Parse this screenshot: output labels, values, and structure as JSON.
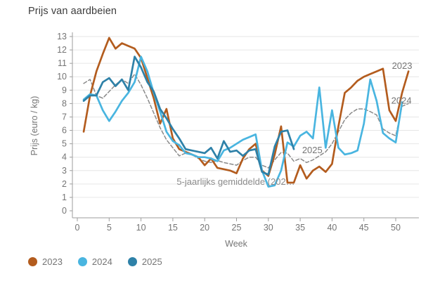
{
  "page": {
    "title": "Prijs van aardbeien"
  },
  "chart_data": {
    "type": "line",
    "title": "Prijs van aardbeien",
    "xlabel": "Week",
    "ylabel": "Prijs (euro / kg)",
    "xlim": [
      0,
      53
    ],
    "ylim": [
      0,
      13
    ],
    "grid": true,
    "legend_position": "bottom-left",
    "x_ticks": [
      0,
      5,
      10,
      15,
      20,
      25,
      30,
      35,
      40,
      45,
      50
    ],
    "y_ticks": [
      0,
      1,
      2,
      3,
      4,
      5,
      6,
      7,
      8,
      9,
      10,
      11,
      12,
      13
    ],
    "x_unit": "week",
    "first_week": 1,
    "series": [
      {
        "name": "2023",
        "color": "#b35c1e",
        "dashed": false,
        "values": [
          5.9,
          8.6,
          10.4,
          11.7,
          12.9,
          12.1,
          12.5,
          12.3,
          12.1,
          11.4,
          9.9,
          8.4,
          6.5,
          7.6,
          5.4,
          4.6,
          4.4,
          4.2,
          4.0,
          3.4,
          3.9,
          3.2,
          3.1,
          3.0,
          2.8,
          3.9,
          4.6,
          5.0,
          3.0,
          2.6,
          4.2,
          6.3,
          2.1,
          2.1,
          3.4,
          2.4,
          3.0,
          3.3,
          2.9,
          3.5,
          6.3,
          8.8,
          9.2,
          9.7,
          10.0,
          10.2,
          10.4,
          10.6,
          7.5,
          6.7,
          8.8,
          10.4
        ]
      },
      {
        "name": "2024",
        "color": "#49b5e0",
        "dashed": false,
        "values": [
          8.3,
          8.7,
          8.6,
          7.5,
          6.7,
          7.4,
          8.2,
          8.8,
          9.6,
          11.5,
          10.4,
          8.8,
          7.4,
          5.9,
          5.2,
          4.9,
          4.3,
          4.2,
          4.0,
          4.0,
          3.9,
          3.7,
          4.5,
          4.7,
          5.0,
          5.3,
          5.5,
          5.7,
          3.0,
          1.8,
          1.9,
          3.0,
          5.1,
          4.8,
          5.6,
          5.9,
          5.4,
          9.2,
          4.7,
          7.5,
          4.7,
          4.2,
          4.3,
          4.5,
          6.5,
          9.8,
          8.2,
          5.8,
          5.4,
          5.1,
          8.1
        ]
      },
      {
        "name": "2025",
        "color": "#2e81a8",
        "dashed": false,
        "values": [
          8.2,
          8.6,
          8.6,
          9.6,
          9.9,
          9.3,
          9.8,
          9.0,
          11.5,
          10.7,
          9.6,
          8.9,
          7.6,
          6.9,
          6.1,
          5.4,
          4.6,
          4.5,
          4.4,
          4.3,
          4.7,
          3.9,
          5.2,
          4.4,
          4.5,
          4.1,
          4.5,
          4.6,
          2.9,
          2.7,
          4.8,
          5.9,
          6.0,
          4.6
        ]
      },
      {
        "name": "5-jaarlijks gemiddelde",
        "color": "#8a8a8a",
        "dashed": true,
        "values": [
          9.5,
          9.8,
          8.6,
          8.4,
          8.9,
          9.4,
          9.8,
          9.5,
          10.2,
          9.4,
          8.4,
          7.3,
          6.2,
          5.3,
          4.7,
          4.1,
          4.3,
          4.2,
          3.9,
          3.7,
          3.6,
          3.75,
          3.6,
          3.5,
          3.4,
          3.75,
          4.0,
          4.0,
          3.4,
          3.2,
          3.8,
          4.35,
          4.3,
          3.7,
          3.9,
          3.6,
          3.8,
          4.1,
          4.4,
          5.0,
          5.9,
          6.8,
          7.3,
          7.6,
          7.6,
          7.4,
          7.15,
          6.1,
          5.8,
          5.6,
          7.8,
          8.0
        ]
      }
    ],
    "annotations": [
      {
        "text": "2023",
        "week": 49.4,
        "value": 10.6,
        "color": "#757575"
      },
      {
        "text": "2024",
        "week": 49.3,
        "value": 8.0,
        "color": "#757575"
      },
      {
        "text": "2025",
        "week": 35.3,
        "value": 4.3,
        "color": "#757575"
      },
      {
        "text": "5-jaarlijks gemiddelde (202…",
        "week": 15.6,
        "value": 1.95,
        "color": "#8c8c8c"
      }
    ],
    "legend": {
      "items": [
        {
          "label": "2023",
          "color": "#b35c1e"
        },
        {
          "label": "2024",
          "color": "#49b5e0"
        },
        {
          "label": "2025",
          "color": "#2e81a8"
        }
      ]
    },
    "style": {
      "grid_color": "#e6e6e6",
      "axis_color": "#9e9e9e",
      "tick_label_color": "#757575"
    }
  }
}
